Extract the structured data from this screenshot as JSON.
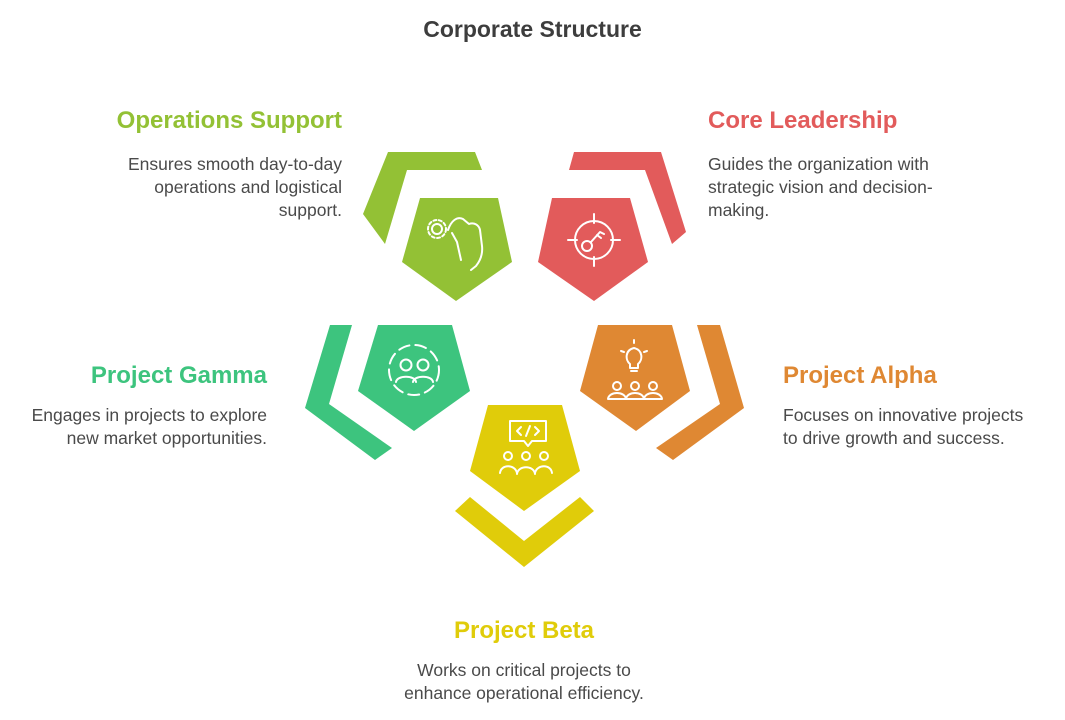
{
  "title": "Corporate Structure",
  "items": {
    "operations": {
      "title": "Operations Support",
      "desc_lines": [
        "Ensures smooth day-to-day",
        "operations and logistical",
        "support."
      ],
      "color": "#93c135",
      "icon": "gear-hand-icon"
    },
    "core": {
      "title": "Core Leadership",
      "desc_lines": [
        "Guides the organization with",
        "strategic vision and decision-",
        "making."
      ],
      "color": "#e25b5b",
      "icon": "target-key-icon"
    },
    "gamma": {
      "title": "Project Gamma",
      "desc_lines": [
        "Engages in projects to explore",
        "new market opportunities."
      ],
      "color": "#3dc47e",
      "icon": "team-circle-icon"
    },
    "alpha": {
      "title": "Project Alpha",
      "desc_lines": [
        "Focuses on innovative projects",
        "to drive growth and success."
      ],
      "color": "#df8833",
      "icon": "idea-team-icon"
    },
    "beta": {
      "title": "Project Beta",
      "desc_lines": [
        "Works on critical projects to",
        "enhance operational efficiency."
      ],
      "color": "#e0cc0a",
      "icon": "code-team-icon"
    }
  }
}
